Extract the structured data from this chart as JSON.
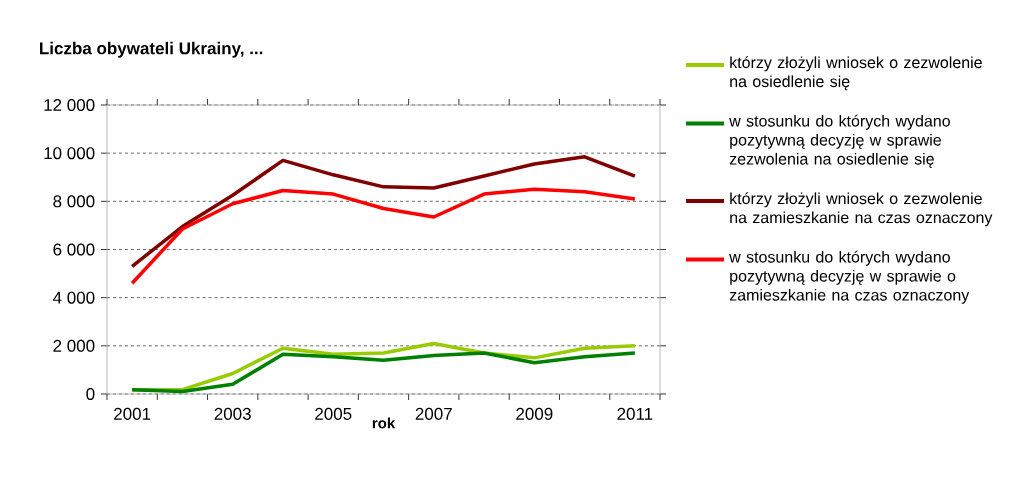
{
  "chart_data": {
    "type": "line",
    "title": "Liczba obywateli Ukrainy, ...",
    "xlabel": "rok",
    "categories": [
      "2001",
      null,
      "2003",
      null,
      "2005",
      null,
      "2007",
      null,
      "2009",
      null,
      "2011"
    ],
    "ylim": [
      0,
      12000
    ],
    "yticks": [
      {
        "value": 0,
        "label": "0"
      },
      {
        "value": 2000,
        "label": "2 000"
      },
      {
        "value": 4000,
        "label": "4 000"
      },
      {
        "value": 6000,
        "label": "6 000"
      },
      {
        "value": 8000,
        "label": "8 000"
      },
      {
        "value": 10000,
        "label": "10 000"
      },
      {
        "value": 12000,
        "label": "12 000"
      }
    ],
    "grid": "y",
    "legend": "right",
    "marker": "none",
    "line_style": "solid",
    "series": [
      {
        "name": "którzy złożyli wniosek o zezwolenie na osiedlenie się",
        "color": "#99cc00",
        "values": [
          180,
          180,
          850,
          1900,
          1650,
          1700,
          2100,
          1700,
          1500,
          1900,
          2000
        ]
      },
      {
        "name": "w stosunku do których wydano pozytywną decyzję w sprawie zezwolenia na osiedlenie się",
        "color": "#008000",
        "values": [
          180,
          100,
          400,
          1650,
          1550,
          1400,
          1600,
          1700,
          1300,
          1550,
          1700
        ]
      },
      {
        "name": "którzy złożyli wniosek o zezwolenie na zamieszkanie na czas oznaczony",
        "color": "#800000",
        "values": [
          5300,
          6950,
          8250,
          9700,
          9100,
          8600,
          8550,
          9050,
          9550,
          9850,
          9050
        ]
      },
      {
        "name": "w stosunku do których wydano pozytywną decyzję w sprawie o zamieszkanie na czas oznaczony",
        "color": "#ff0000",
        "values": [
          4600,
          6850,
          7900,
          8450,
          8300,
          7700,
          7350,
          8300,
          8500,
          8400,
          8100
        ]
      }
    ]
  }
}
